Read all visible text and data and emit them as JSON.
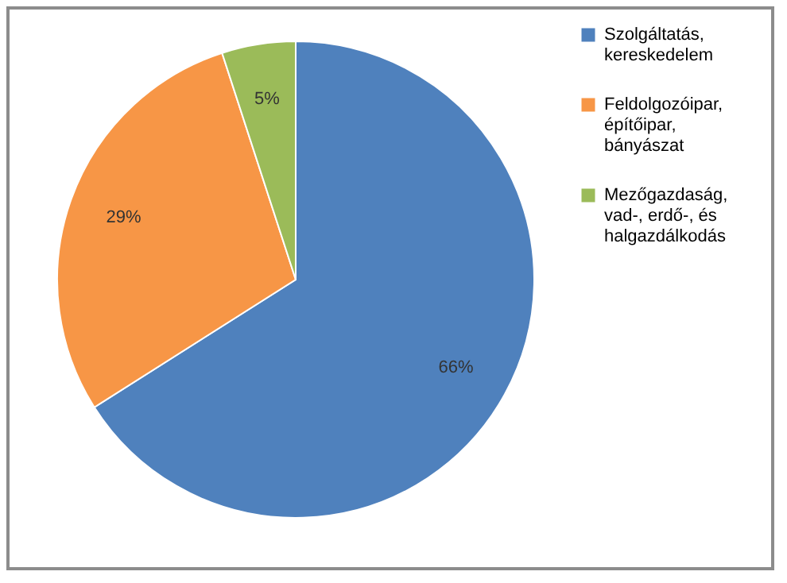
{
  "chart_data": {
    "type": "pie",
    "categories": [
      "Szolgáltatás,\nkereskedelem",
      "Feldolgozóipar,\népítőipar,\nbányászat",
      "Mezőgazdaság,\nvad-, erdő-, és\nhalgazdálkodás"
    ],
    "values": [
      66,
      29,
      5
    ],
    "colors": [
      "#4f81bd",
      "#f79646",
      "#9bbb59"
    ],
    "value_labels": [
      "66%",
      "29%",
      "5%"
    ],
    "legend": "right"
  }
}
